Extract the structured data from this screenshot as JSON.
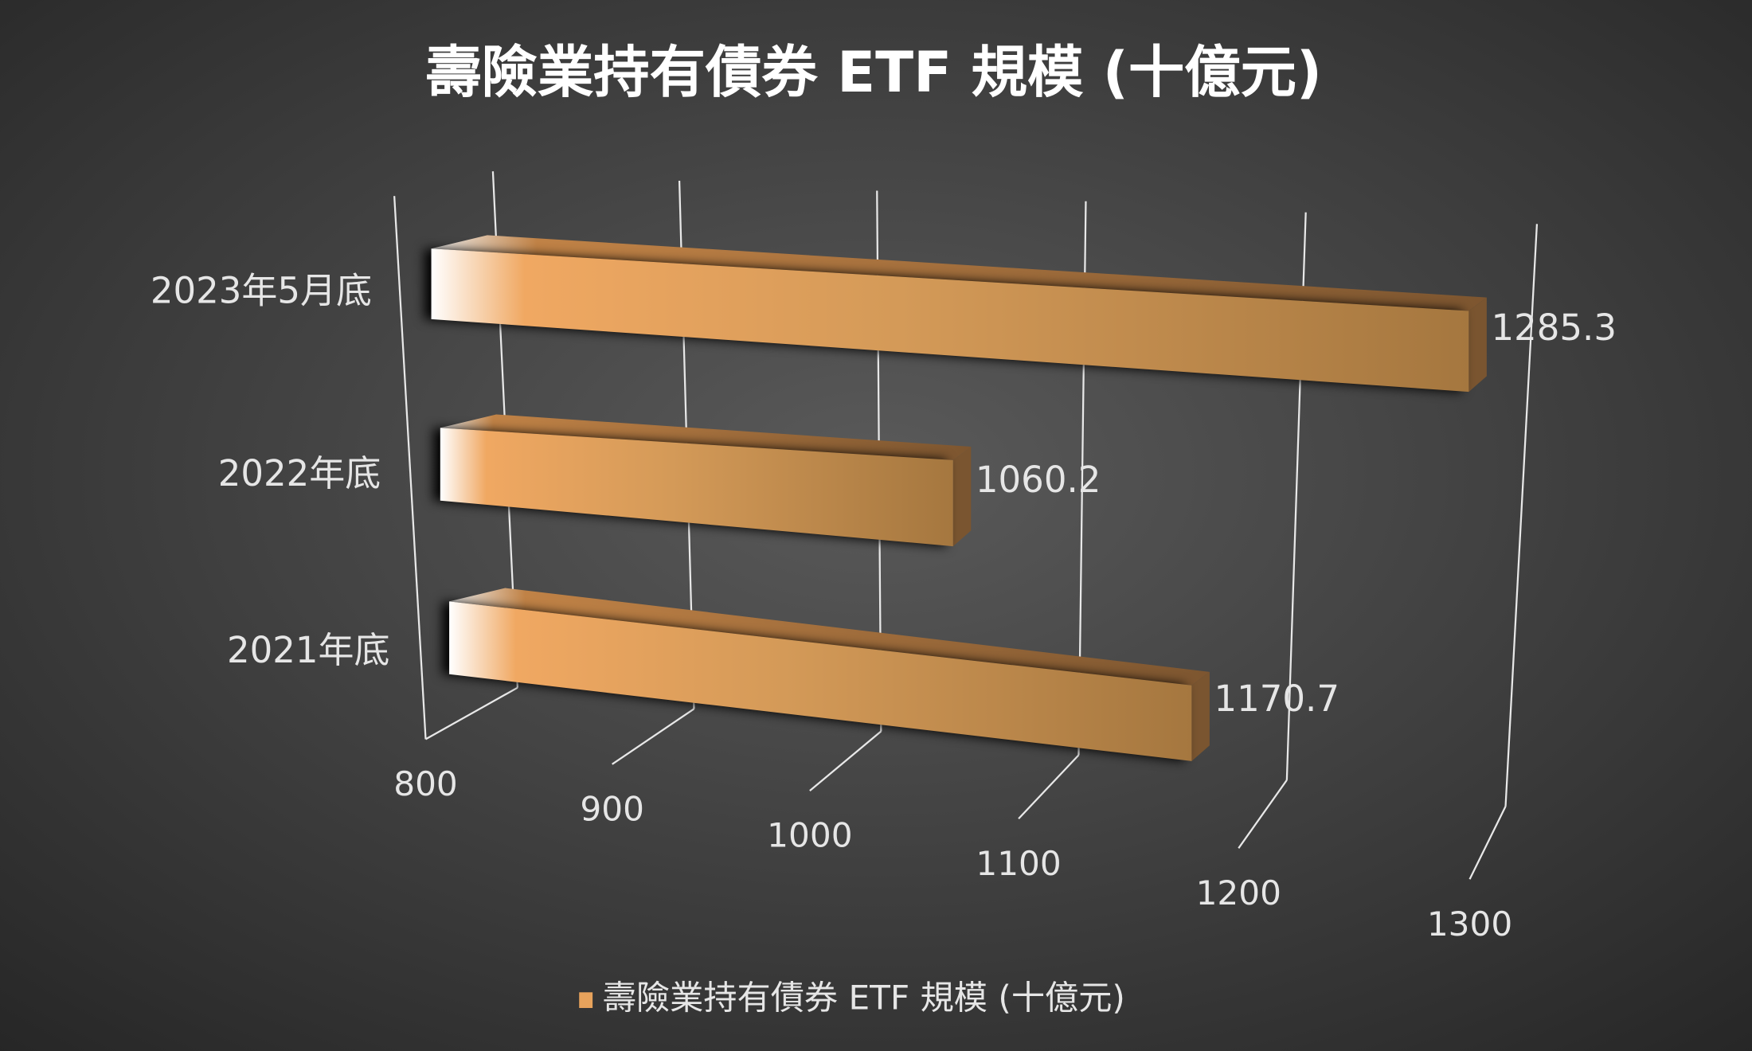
{
  "chart_data": {
    "type": "bar3d",
    "title": "壽險業持有債券 ETF 規模 (十億元)",
    "categories": [
      "2023年5月底",
      "2022年底",
      "2021年底"
    ],
    "series": [
      {
        "name": "壽險業持有債券 ETF 規模 (十億元)",
        "color": "#e8a35c",
        "values": [
          1285.3,
          1060.2,
          1170.7
        ]
      }
    ],
    "xlim": [
      800,
      1300
    ],
    "xticks": [
      800,
      900,
      1000,
      1100,
      1200,
      1300
    ],
    "grid": true
  }
}
